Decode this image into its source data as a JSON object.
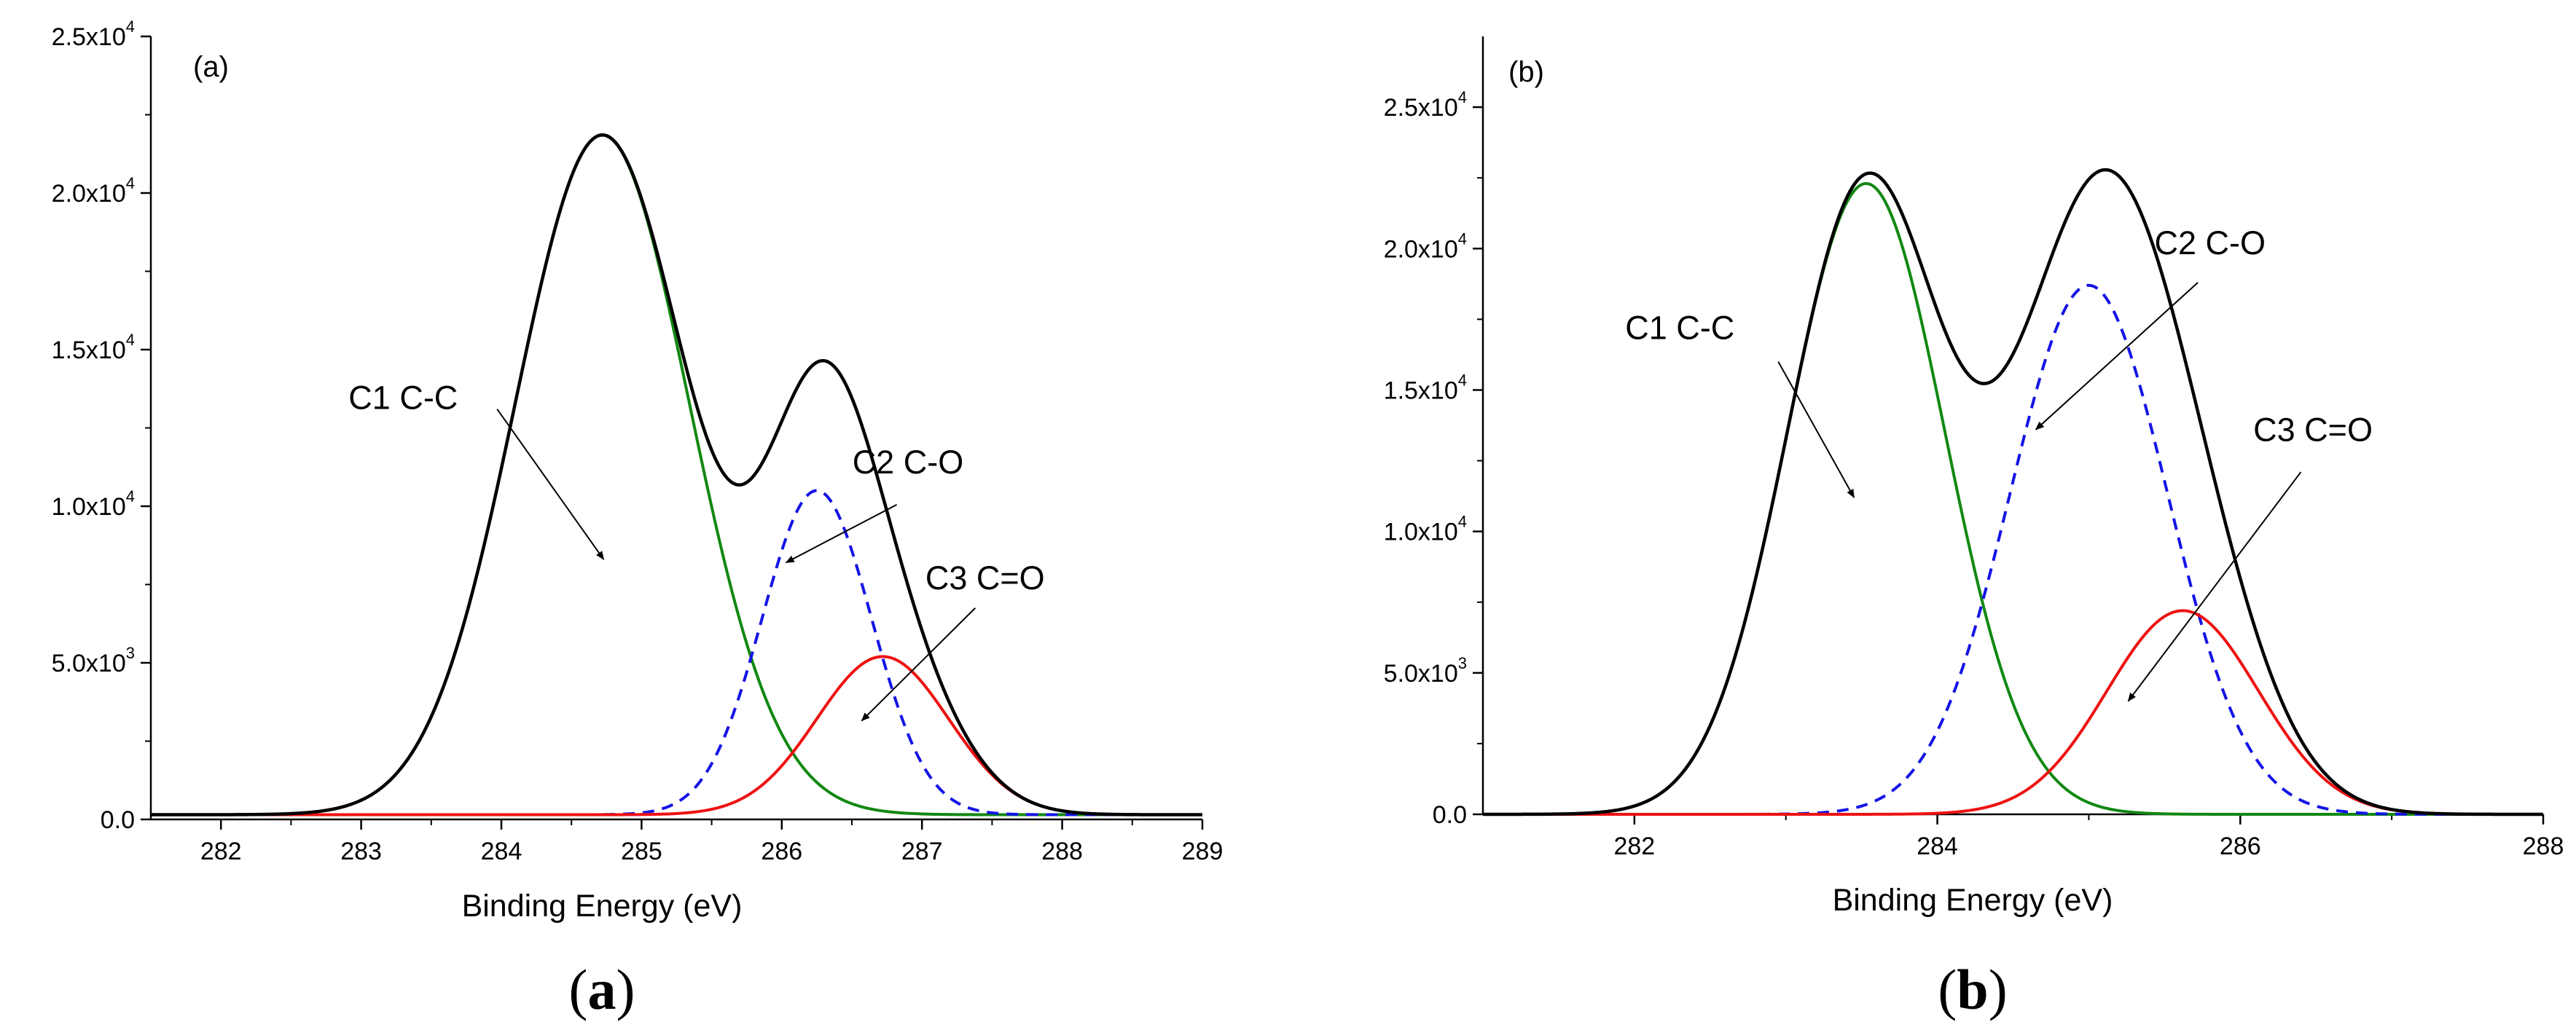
{
  "colors": {
    "envelope": "#000000",
    "c1": "#118811",
    "c2": "#1414e6",
    "c3": "#ee1111",
    "axis": "#000000"
  },
  "chart_data": [
    {
      "type": "line",
      "panel_tag": "(a)",
      "caption_letter": "a",
      "xlabel": "Binding Energy (eV)",
      "ylabel": "",
      "xlim": [
        281.5,
        289
      ],
      "ylim": [
        0,
        25000
      ],
      "xticks": [
        282,
        283,
        284,
        285,
        286,
        287,
        288,
        289
      ],
      "yticks": [
        {
          "value": 0,
          "mant": "0.0",
          "exp": ""
        },
        {
          "value": 5000,
          "mant": "5.0x10",
          "exp": "3"
        },
        {
          "value": 10000,
          "mant": "1.0x10",
          "exp": "4"
        },
        {
          "value": 15000,
          "mant": "1.5x10",
          "exp": "4"
        },
        {
          "value": 20000,
          "mant": "2.0x10",
          "exp": "4"
        },
        {
          "value": 25000,
          "mant": "2.5x10",
          "exp": "4"
        }
      ],
      "baseline": 150,
      "peaks": [
        {
          "name": "C1 C-C",
          "center": 284.72,
          "amplitude": 21700,
          "sigma": 0.62,
          "style": "solid",
          "color_key": "c1"
        },
        {
          "name": "C2 C-O",
          "center": 286.25,
          "amplitude": 10350,
          "sigma": 0.39,
          "style": "dashed",
          "color_key": "c2"
        },
        {
          "name": "C3 C=O",
          "center": 286.72,
          "amplitude": 5050,
          "sigma": 0.47,
          "style": "solid",
          "color_key": "c3"
        }
      ],
      "annotations": [
        {
          "text": "C1 C-C",
          "text_x": 283.3,
          "text_y": 13100,
          "arrow_from": [
            283.97,
            13100
          ],
          "arrow_to": [
            284.73,
            8300
          ]
        },
        {
          "text": "C2 C-O",
          "text_x": 286.9,
          "text_y": 11050,
          "arrow_from": [
            286.82,
            10050
          ],
          "arrow_to": [
            286.03,
            8200
          ]
        },
        {
          "text": "C3 C=O",
          "text_x": 287.45,
          "text_y": 7350,
          "arrow_from": [
            287.38,
            6750
          ],
          "arrow_to": [
            286.57,
            3150
          ]
        }
      ]
    },
    {
      "type": "line",
      "panel_tag": "(b)",
      "caption_letter": "b",
      "xlabel": "Binding Energy (eV)",
      "ylabel": "",
      "xlim": [
        281,
        288
      ],
      "ylim": [
        0,
        27500
      ],
      "xticks": [
        282,
        284,
        286,
        288
      ],
      "yticks": [
        {
          "value": 0,
          "mant": "0.0",
          "exp": ""
        },
        {
          "value": 5000,
          "mant": "5.0x10",
          "exp": "3"
        },
        {
          "value": 10000,
          "mant": "1.0x10",
          "exp": "4"
        },
        {
          "value": 15000,
          "mant": "1.5x10",
          "exp": "4"
        },
        {
          "value": 20000,
          "mant": "2.0x10",
          "exp": "4"
        },
        {
          "value": 25000,
          "mant": "2.5x10",
          "exp": "4"
        }
      ],
      "baseline": 0,
      "peaks": [
        {
          "name": "C1 C-C",
          "center": 283.53,
          "amplitude": 22300,
          "sigma": 0.52,
          "style": "solid",
          "color_key": "c1"
        },
        {
          "name": "C2 C-O",
          "center": 285.0,
          "amplitude": 18700,
          "sigma": 0.52,
          "style": "dashed",
          "color_key": "c2"
        },
        {
          "name": "C3 C=O",
          "center": 285.62,
          "amplitude": 7200,
          "sigma": 0.5,
          "style": "solid",
          "color_key": "c3"
        }
      ],
      "annotations": [
        {
          "text": "C1 C-C",
          "text_x": 282.3,
          "text_y": 16800,
          "arrow_from": [
            282.95,
            16000
          ],
          "arrow_to": [
            283.45,
            11200
          ]
        },
        {
          "text": "C2 C-O",
          "text_x": 285.8,
          "text_y": 19800,
          "arrow_from": [
            285.72,
            18800
          ],
          "arrow_to": [
            284.65,
            13600
          ]
        },
        {
          "text": "C3 C=O",
          "text_x": 286.48,
          "text_y": 13200,
          "arrow_from": [
            286.4,
            12100
          ],
          "arrow_to": [
            285.26,
            4000
          ]
        }
      ]
    }
  ]
}
